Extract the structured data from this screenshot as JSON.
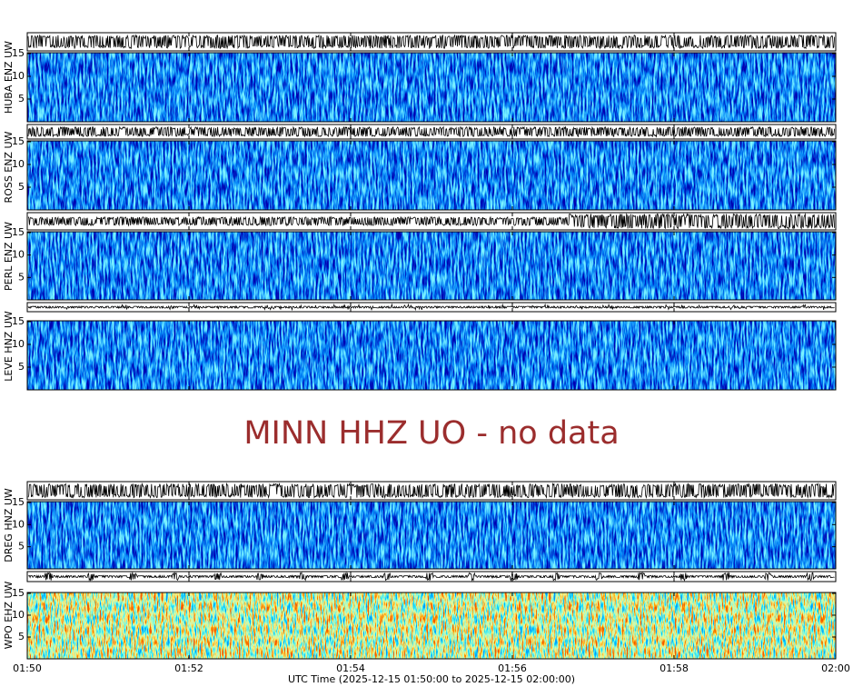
{
  "chart_data": {
    "type": "spectrogram",
    "xlabel": "UTC Time (2025-12-15 01:50:00 to 2025-12-15 02:00:00)",
    "xlim": [
      0,
      10
    ],
    "xticks": [
      {
        "value": 0,
        "label": "01:50"
      },
      {
        "value": 2,
        "label": "01:52"
      },
      {
        "value": 4,
        "label": "01:54"
      },
      {
        "value": 6,
        "label": "01:56"
      },
      {
        "value": 8,
        "label": "01:58"
      },
      {
        "value": 10,
        "label": "02:00"
      }
    ],
    "ylim": [
      0,
      15.2
    ],
    "yticks": [
      5,
      10,
      15
    ],
    "message": "MINN HHZ UO - no data",
    "panels": [
      {
        "label": "HUBA ENZ UW",
        "colormap": "blue"
      },
      {
        "label": "ROSS ENZ UW",
        "colormap": "blue"
      },
      {
        "label": "PERL ENZ UW",
        "colormap": "blue"
      },
      {
        "label": "LEVE HNZ UW",
        "colormap": "blue"
      },
      {
        "label": "DREG HNZ UW",
        "colormap": "blue"
      },
      {
        "label": "WPO EHZ UW",
        "colormap": "jet"
      }
    ]
  }
}
